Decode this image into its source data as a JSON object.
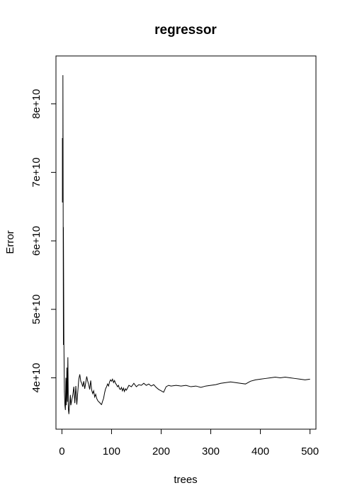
{
  "chart_data": {
    "type": "line",
    "title": "regressor",
    "xlabel": "trees",
    "ylabel": "Error",
    "xlim": [
      -12,
      512
    ],
    "ylim": [
      32500000000,
      87000000000
    ],
    "x_ticks": [
      0,
      100,
      200,
      300,
      400,
      500
    ],
    "x_tick_labels": [
      "0",
      "100",
      "200",
      "300",
      "400",
      "500"
    ],
    "y_ticks": [
      40000000000,
      50000000000,
      60000000000,
      70000000000,
      80000000000
    ],
    "y_tick_labels": [
      "4e+10",
      "5e+10",
      "6e+10",
      "7e+10",
      "8e+10"
    ],
    "grid": false,
    "series": [
      {
        "x": [
          1,
          1,
          2,
          2,
          3,
          3,
          4,
          5,
          6,
          7,
          8,
          9,
          10,
          11,
          12,
          13,
          14,
          15,
          16,
          17,
          18,
          20,
          22,
          24,
          26,
          28,
          30,
          32,
          34,
          36,
          38,
          40,
          42,
          44,
          46,
          48,
          50,
          52,
          54,
          56,
          58,
          60,
          62,
          64,
          66,
          68,
          70,
          72,
          74,
          76,
          78,
          80,
          82,
          84,
          86,
          88,
          90,
          92,
          94,
          96,
          98,
          100,
          102,
          104,
          106,
          108,
          110,
          112,
          114,
          116,
          118,
          120,
          122,
          124,
          126,
          128,
          130,
          135,
          140,
          145,
          150,
          155,
          160,
          165,
          170,
          175,
          180,
          185,
          190,
          195,
          200,
          205,
          210,
          215,
          220,
          230,
          240,
          250,
          260,
          270,
          280,
          290,
          300,
          310,
          320,
          330,
          340,
          350,
          360,
          370,
          380,
          390,
          400,
          410,
          420,
          430,
          440,
          450,
          460,
          470,
          480,
          490,
          500
        ],
        "values": [
          65600000000,
          75000000000,
          66000000000,
          84200000000,
          44800000000,
          62000000000,
          45000000000,
          38000000000,
          36000000000,
          35300000000,
          40000000000,
          36000000000,
          41500000000,
          36500000000,
          43000000000,
          35500000000,
          34700000000,
          35800000000,
          36500000000,
          37500000000,
          36000000000,
          36800000000,
          37500000000,
          38700000000,
          36300000000,
          38800000000,
          36100000000,
          38000000000,
          39800000000,
          40500000000,
          39500000000,
          39200000000,
          38700000000,
          39500000000,
          38400000000,
          39300000000,
          40200000000,
          39500000000,
          39000000000,
          38300000000,
          39600000000,
          38200000000,
          37700000000,
          38100000000,
          37200000000,
          37600000000,
          37000000000,
          36700000000,
          36500000000,
          36400000000,
          36200000000,
          36100000000,
          36600000000,
          37000000000,
          37800000000,
          38400000000,
          38700000000,
          39100000000,
          38800000000,
          39400000000,
          39700000000,
          39500000000,
          39800000000,
          39300000000,
          39600000000,
          39200000000,
          39000000000,
          38700000000,
          38900000000,
          38400000000,
          38300000000,
          38600000000,
          38100000000,
          38500000000,
          38000000000,
          38400000000,
          38200000000,
          38900000000,
          38700000000,
          39200000000,
          38700000000,
          39000000000,
          38900000000,
          39200000000,
          38900000000,
          39100000000,
          38800000000,
          39000000000,
          38600000000,
          38300000000,
          38100000000,
          37900000000,
          38700000000,
          38900000000,
          38800000000,
          38900000000,
          38800000000,
          38900000000,
          38700000000,
          38800000000,
          38600000000,
          38800000000,
          38900000000,
          39000000000,
          39200000000,
          39300000000,
          39400000000,
          39300000000,
          39200000000,
          39100000000,
          39500000000,
          39700000000,
          39800000000,
          39900000000,
          40000000000,
          40100000000,
          40000000000,
          40100000000,
          40000000000,
          39900000000,
          39800000000,
          39700000000,
          39800000000
        ]
      }
    ]
  }
}
